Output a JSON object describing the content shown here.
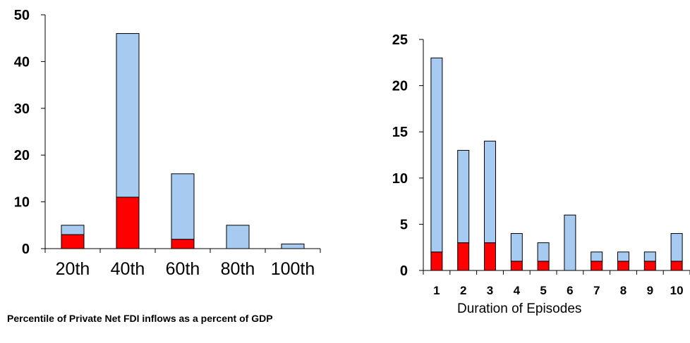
{
  "colors": {
    "red": "#ff0000",
    "blue": "#a6caf0",
    "outline": "#000000"
  },
  "chart_data": [
    {
      "type": "bar",
      "stacked": true,
      "categories": [
        "20th",
        "40th",
        "60th",
        "80th",
        "100th"
      ],
      "series": [
        {
          "values": [
            3,
            11,
            2,
            0,
            0
          ],
          "color": "#ff0000"
        },
        {
          "values": [
            2,
            35,
            14,
            5,
            1
          ],
          "color": "#a6caf0"
        }
      ],
      "totals": [
        5,
        46,
        16,
        5,
        1
      ],
      "yticks": [
        0,
        10,
        20,
        30,
        40,
        50
      ],
      "ylim": [
        0,
        50
      ],
      "xlabel": "Percentile of Private Net FDI inflows as a percent of GDP",
      "ylabel": "",
      "title": "",
      "grid": false
    },
    {
      "type": "bar",
      "stacked": true,
      "categories": [
        "1",
        "2",
        "3",
        "4",
        "5",
        "6",
        "7",
        "8",
        "9",
        "10"
      ],
      "series": [
        {
          "values": [
            2,
            3,
            3,
            1,
            1,
            0,
            1,
            1,
            1,
            1
          ],
          "color": "#ff0000"
        },
        {
          "values": [
            21,
            10,
            11,
            3,
            2,
            6,
            1,
            1,
            1,
            3
          ],
          "color": "#a6caf0"
        }
      ],
      "totals": [
        23,
        13,
        14,
        4,
        3,
        6,
        2,
        2,
        2,
        4
      ],
      "yticks": [
        0,
        5,
        10,
        15,
        20,
        25
      ],
      "ylim": [
        0,
        25
      ],
      "xlabel": "Duration of Episodes",
      "ylabel": "",
      "title": "",
      "grid": false
    }
  ]
}
